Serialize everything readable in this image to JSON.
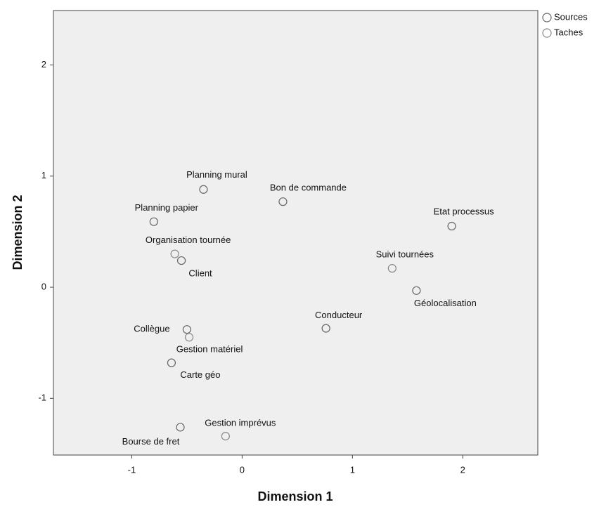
{
  "chart_data": {
    "type": "scatter",
    "xlabel": "Dimension 1",
    "ylabel": "Dimension 2",
    "xlim": [
      -1.71,
      2.68
    ],
    "ylim": [
      -1.51,
      2.49
    ],
    "xticks": [
      -1,
      0,
      1,
      2
    ],
    "yticks": [
      -1,
      0,
      1,
      2
    ],
    "legend": "upper right",
    "series": [
      {
        "name": "Sources",
        "color": "#666666",
        "labels": [
          "Planning mural",
          "Bon de commande",
          "Planning papier",
          "Client",
          "Etat processus",
          "Géolocalisation",
          "Conducteur",
          "Collègue",
          "Carte géo",
          "Bourse de fret"
        ],
        "x": [
          -0.35,
          0.37,
          -0.8,
          -0.55,
          1.9,
          1.58,
          0.76,
          -0.5,
          -0.64,
          -0.56
        ],
        "values": [
          0.88,
          0.77,
          0.59,
          0.24,
          0.55,
          -0.03,
          -0.37,
          -0.38,
          -0.68,
          -1.26
        ]
      },
      {
        "name": "Taches",
        "color": "#888888",
        "labels": [
          "Organisation tournée",
          "Suivi tournées",
          "Gestion matériel",
          "Gestion imprévus"
        ],
        "x": [
          -0.61,
          1.36,
          -0.48,
          -0.15
        ],
        "values": [
          0.3,
          0.17,
          -0.45,
          -1.34
        ]
      }
    ]
  }
}
